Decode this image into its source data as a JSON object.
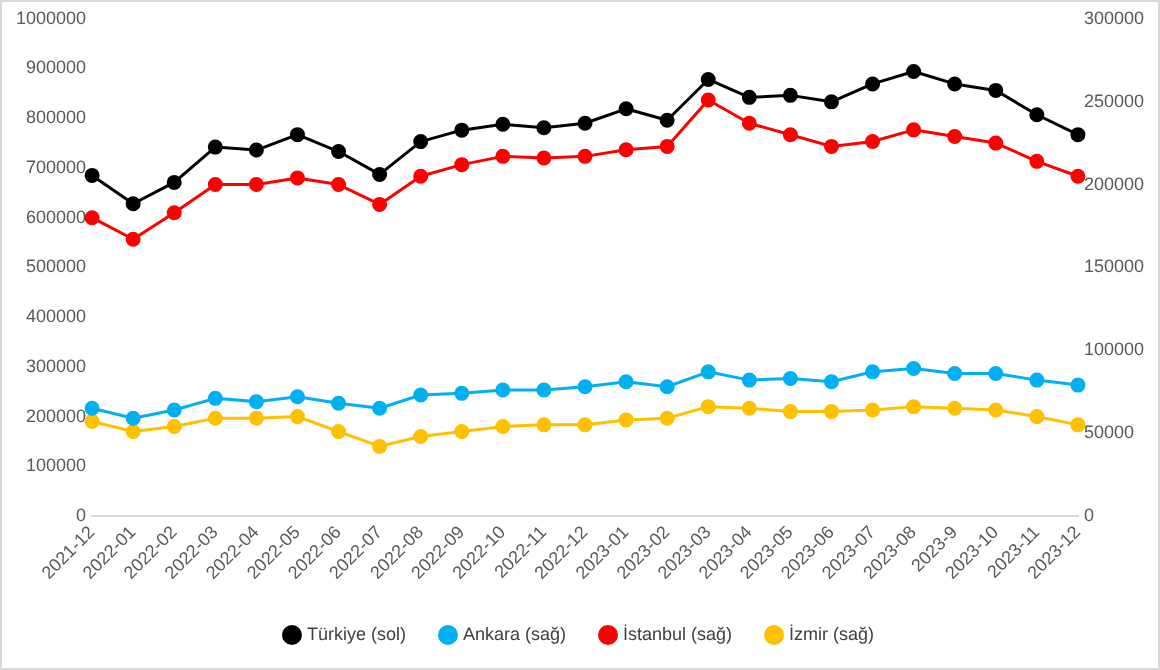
{
  "chart_data": {
    "type": "line",
    "categories": [
      "2021-12",
      "2022-01",
      "2022-02",
      "2022-03",
      "2022-04",
      "2022-05",
      "2022-06",
      "2022-07",
      "2022-08",
      "2022-09",
      "2022-10",
      "2022-11",
      "2022-12",
      "2023-01",
      "2023-02",
      "2023-03",
      "2023-04",
      "2023-05",
      "2023-06",
      "2023-07",
      "2023-08",
      "2023-9",
      "2023-10",
      "2023-11",
      "2023-12"
    ],
    "series": [
      {
        "name": "Türkiye (sol)",
        "color": "#000000",
        "values": [
          685000,
          628000,
          671000,
          742000,
          736000,
          767000,
          733000,
          687000,
          753000,
          776000,
          788000,
          781000,
          790000,
          819000,
          796000,
          878000,
          842000,
          846000,
          833000,
          869000,
          894000,
          869000,
          856000,
          807000,
          767000
        ]
      },
      {
        "name": "Ankara (sağ)",
        "color": "#00b0f0",
        "axis": "y2",
        "values": [
          65000,
          59000,
          64000,
          71000,
          69000,
          72000,
          68000,
          65000,
          73000,
          74000,
          76000,
          76000,
          78000,
          81000,
          78000,
          87000,
          82000,
          83000,
          81000,
          87000,
          89000,
          86000,
          86000,
          82000,
          79000
        ]
      },
      {
        "name": "İstanbul (sağ)",
        "color": "#ff0000",
        "axis": "y2",
        "values": [
          180000,
          167000,
          183000,
          200000,
          200000,
          204000,
          200000,
          188000,
          205000,
          212000,
          217000,
          216000,
          217000,
          221000,
          223000,
          251000,
          237000,
          230000,
          223000,
          226000,
          233000,
          229000,
          225000,
          214000,
          205000
        ]
      },
      {
        "name": "İzmir (sağ)",
        "color": "#ffc000",
        "axis": "y2",
        "values": [
          57000,
          51000,
          54000,
          59000,
          59000,
          60000,
          51000,
          42000,
          48000,
          51000,
          54000,
          55000,
          55000,
          58000,
          59000,
          66000,
          65000,
          63000,
          63000,
          64000,
          66000,
          65000,
          64000,
          60000,
          55000
        ]
      }
    ],
    "ylim": [
      0,
      1000000
    ],
    "yticks": [
      0,
      100000,
      200000,
      300000,
      400000,
      500000,
      600000,
      700000,
      800000,
      900000,
      1000000
    ],
    "y2lim": [
      0,
      300000
    ],
    "y2ticks": [
      0,
      50000,
      100000,
      150000,
      200000,
      250000,
      300000
    ],
    "grid": false,
    "legend": "bottom",
    "marker": "circle",
    "line_style": "solid"
  }
}
